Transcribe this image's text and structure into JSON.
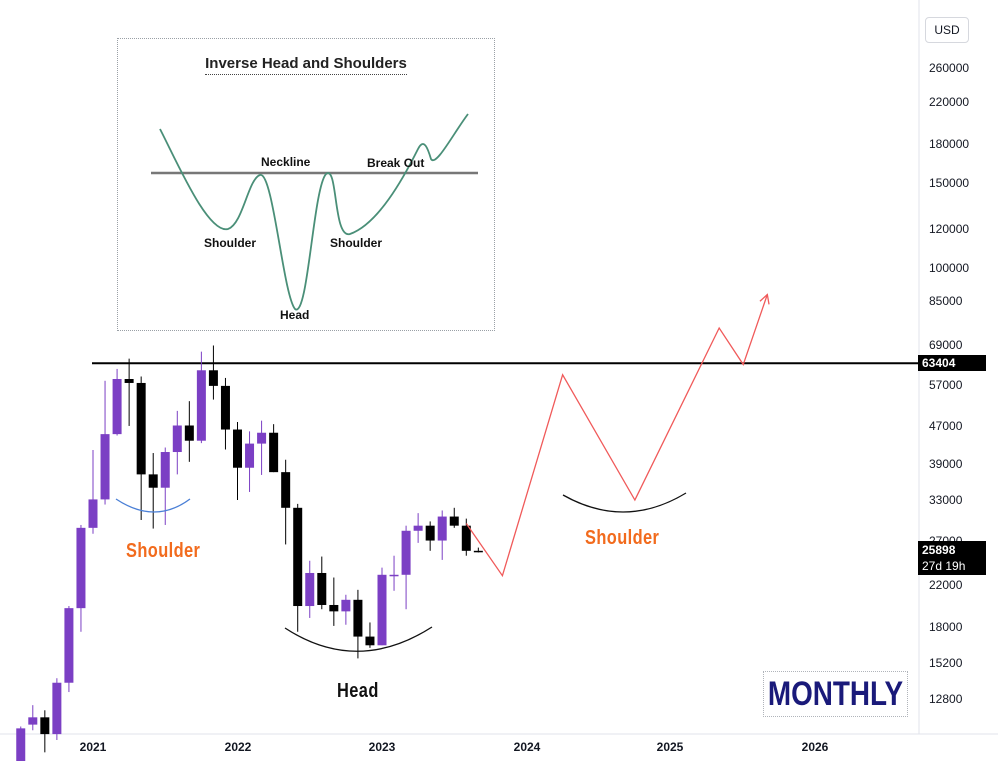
{
  "header": {
    "currency_label": "USD"
  },
  "price_scale": {
    "ticks": [
      "260000",
      "220000",
      "180000",
      "150000",
      "120000",
      "100000",
      "85000",
      "69000",
      "57000",
      "47000",
      "39000",
      "33000",
      "27000",
      "22000",
      "18000",
      "15200",
      "12800"
    ],
    "neckline_label": "63404",
    "last_price_label": "25898",
    "countdown_label": "27d 19h"
  },
  "time_scale": {
    "ticks": [
      "2021",
      "2022",
      "2023",
      "2024",
      "2025",
      "2026"
    ]
  },
  "inset": {
    "title": "Inverse Head and Shoulders",
    "labels": {
      "neckline": "Neckline",
      "break_out": "Break Out",
      "left_shoulder": "Shoulder",
      "right_shoulder": "Shoulder",
      "head": "Head"
    }
  },
  "annotations": {
    "left_shoulder": "Shoulder",
    "head": "Head",
    "right_shoulder": "Shoulder",
    "timeframe": "MONTHLY"
  },
  "colors": {
    "bull_candle": "#7b3fc4",
    "bear_candle": "#000000",
    "projection": "#f05a5a",
    "neckline": "#000000",
    "shoulder_text": "#f26b1d",
    "head_text": "#111111",
    "left_shoulder_arc": "#4a7fd6",
    "inset_curve": "#4a8f78",
    "inset_neckline": "#777777",
    "timeframe_text": "#1a1a7a"
  },
  "chart_data": {
    "type": "candlestick",
    "timeframe": "monthly",
    "currency": "USD",
    "y_scale": "log",
    "ylim": [
      11000,
      290000
    ],
    "xlim": [
      "2020-06",
      "2026-12"
    ],
    "neckline_price": 63404,
    "last_price": 25898,
    "candles": [
      {
        "date": "2020-07",
        "o": 9400,
        "h": 11200,
        "l": 9000,
        "c": 11100
      },
      {
        "date": "2020-08",
        "o": 11300,
        "h": 12400,
        "l": 11000,
        "c": 11700
      },
      {
        "date": "2020-09",
        "o": 11700,
        "h": 12100,
        "l": 9900,
        "c": 10800
      },
      {
        "date": "2020-10",
        "o": 10800,
        "h": 14100,
        "l": 10500,
        "c": 13800
      },
      {
        "date": "2020-11",
        "o": 13800,
        "h": 19900,
        "l": 13200,
        "c": 19700
      },
      {
        "date": "2020-12",
        "o": 19700,
        "h": 29300,
        "l": 17600,
        "c": 28900
      },
      {
        "date": "2021-01",
        "o": 28900,
        "h": 41900,
        "l": 28100,
        "c": 33100
      },
      {
        "date": "2021-02",
        "o": 33100,
        "h": 58300,
        "l": 32300,
        "c": 45200
      },
      {
        "date": "2021-03",
        "o": 45200,
        "h": 61700,
        "l": 44900,
        "c": 58800
      },
      {
        "date": "2021-04",
        "o": 58800,
        "h": 64800,
        "l": 47000,
        "c": 57700
      },
      {
        "date": "2021-05",
        "o": 57700,
        "h": 59500,
        "l": 30000,
        "c": 37300
      },
      {
        "date": "2021-06",
        "o": 37300,
        "h": 41300,
        "l": 28800,
        "c": 35000
      },
      {
        "date": "2021-07",
        "o": 35000,
        "h": 42400,
        "l": 29300,
        "c": 41500
      },
      {
        "date": "2021-08",
        "o": 41500,
        "h": 50500,
        "l": 37300,
        "c": 47100
      },
      {
        "date": "2021-09",
        "o": 47100,
        "h": 52900,
        "l": 39600,
        "c": 43800
      },
      {
        "date": "2021-10",
        "o": 43800,
        "h": 67000,
        "l": 43300,
        "c": 61300
      },
      {
        "date": "2021-11",
        "o": 61300,
        "h": 69000,
        "l": 53300,
        "c": 56900
      },
      {
        "date": "2021-12",
        "o": 56900,
        "h": 59100,
        "l": 42000,
        "c": 46200
      },
      {
        "date": "2022-01",
        "o": 46200,
        "h": 47900,
        "l": 33000,
        "c": 38500
      },
      {
        "date": "2022-02",
        "o": 38500,
        "h": 45800,
        "l": 34300,
        "c": 43200
      },
      {
        "date": "2022-03",
        "o": 43200,
        "h": 48200,
        "l": 37200,
        "c": 45500
      },
      {
        "date": "2022-04",
        "o": 45500,
        "h": 47400,
        "l": 37700,
        "c": 37700
      },
      {
        "date": "2022-05",
        "o": 37700,
        "h": 40000,
        "l": 26700,
        "c": 31800
      },
      {
        "date": "2022-06",
        "o": 31800,
        "h": 32400,
        "l": 17600,
        "c": 19900
      },
      {
        "date": "2022-07",
        "o": 19900,
        "h": 24700,
        "l": 18800,
        "c": 23300
      },
      {
        "date": "2022-08",
        "o": 23300,
        "h": 25200,
        "l": 19600,
        "c": 20000
      },
      {
        "date": "2022-09",
        "o": 20000,
        "h": 22800,
        "l": 18100,
        "c": 19400
      },
      {
        "date": "2022-10",
        "o": 19400,
        "h": 21000,
        "l": 18200,
        "c": 20500
      },
      {
        "date": "2022-11",
        "o": 20500,
        "h": 21500,
        "l": 15500,
        "c": 17200
      },
      {
        "date": "2022-12",
        "o": 17200,
        "h": 18400,
        "l": 16300,
        "c": 16500
      },
      {
        "date": "2023-01",
        "o": 16500,
        "h": 23900,
        "l": 16500,
        "c": 23100
      },
      {
        "date": "2023-02",
        "o": 23100,
        "h": 25300,
        "l": 21400,
        "c": 23100
      },
      {
        "date": "2023-03",
        "o": 23100,
        "h": 29200,
        "l": 19600,
        "c": 28500
      },
      {
        "date": "2023-04",
        "o": 28500,
        "h": 31000,
        "l": 26900,
        "c": 29200
      },
      {
        "date": "2023-05",
        "o": 29200,
        "h": 29800,
        "l": 25900,
        "c": 27200
      },
      {
        "date": "2023-06",
        "o": 27200,
        "h": 31400,
        "l": 24800,
        "c": 30500
      },
      {
        "date": "2023-07",
        "o": 30500,
        "h": 31800,
        "l": 28900,
        "c": 29200
      },
      {
        "date": "2023-08",
        "o": 29200,
        "h": 30200,
        "l": 25300,
        "c": 25900
      },
      {
        "date": "2023-09",
        "o": 25900,
        "h": 26300,
        "l": 25700,
        "c": 25898
      }
    ],
    "projection_path": [
      {
        "date": "2023-08",
        "price": 29500
      },
      {
        "date": "2023-11",
        "price": 23000
      },
      {
        "date": "2024-04",
        "price": 60000
      },
      {
        "date": "2024-10",
        "price": 33000
      },
      {
        "date": "2025-05",
        "price": 75000
      },
      {
        "date": "2025-07",
        "price": 63000
      },
      {
        "date": "2025-09",
        "price": 88000
      }
    ],
    "annotations": [
      "Shoulder",
      "Head",
      "Shoulder",
      "MONTHLY"
    ]
  }
}
